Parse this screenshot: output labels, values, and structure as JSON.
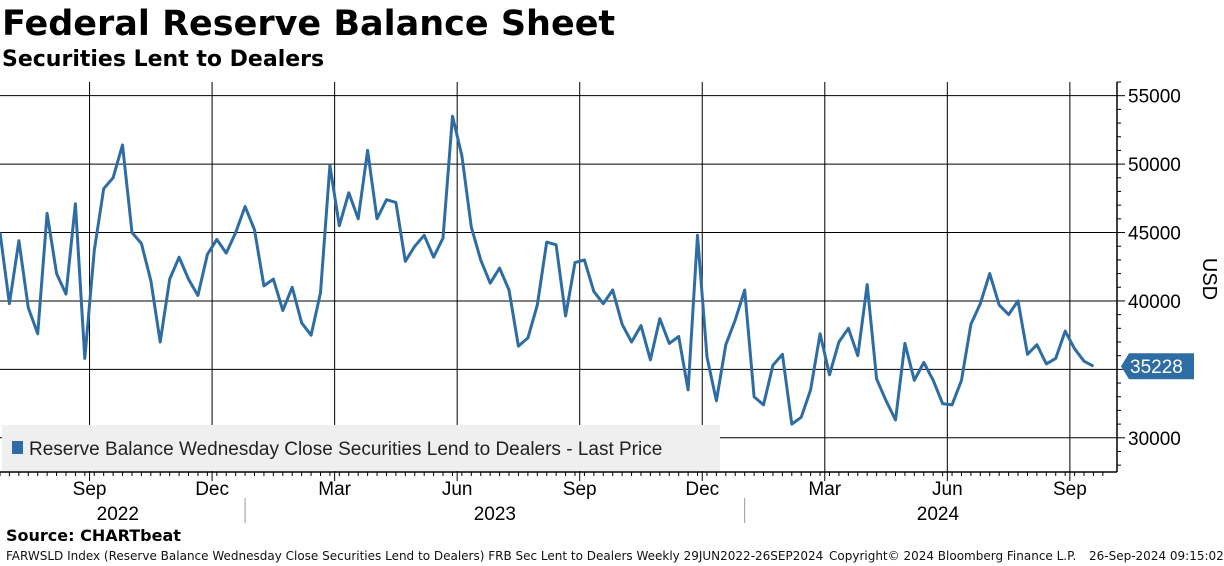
{
  "title": "Federal Reserve Balance Sheet",
  "subtitle": "Securities Lent to Dealers",
  "source": "Source: CHARTbeat",
  "footer": {
    "index_info": "FARWSLD Index (Reserve Balance Wednesday Close Securities Lend to Dealers) FRB Sec Lent to Dealers  Weekly 29JUN2022-26SEP2024",
    "copyright": "Copyright© 2024 Bloomberg Finance L.P.",
    "timestamp": "26-Sep-2024 09:15:02"
  },
  "chart_data": {
    "type": "line",
    "ylabel": "USD",
    "ylim": [
      27500,
      56000
    ],
    "yticks": [
      30000,
      35000,
      40000,
      45000,
      50000,
      55000
    ],
    "ytick_labels": [
      "30000",
      "35000",
      "40000",
      "45000",
      "50000",
      "55000"
    ],
    "x_range_weeks": [
      0,
      118.5
    ],
    "month_ticks": [
      {
        "label": "Sep",
        "week": 9.5
      },
      {
        "label": "Dec",
        "week": 22.5
      },
      {
        "label": "Mar",
        "week": 35.5
      },
      {
        "label": "Jun",
        "week": 48.5
      },
      {
        "label": "Sep",
        "week": 61.5
      },
      {
        "label": "Dec",
        "week": 74.5
      },
      {
        "label": "Mar",
        "week": 87.5
      },
      {
        "label": "Jun",
        "week": 100.5
      },
      {
        "label": "Sep",
        "week": 113.5
      }
    ],
    "year_labels": [
      {
        "label": "2022",
        "center_week": 12.5
      },
      {
        "label": "2023",
        "center_week": 52.5
      },
      {
        "label": "2024",
        "center_week": 99.5
      }
    ],
    "year_separators": [
      26,
      79
    ],
    "legend": "Reserve Balance Wednesday Close Securities Lend to Dealers - Last Price",
    "legend_position": "bottom-left",
    "series_color": "#2e6da4",
    "last_value": 35228,
    "last_value_label": "35228",
    "series": [
      {
        "name": "Reserve Balance Wednesday Close Securities Lend to Dealers - Last Price",
        "values": [
          45000,
          39800,
          44400,
          39500,
          37600,
          46400,
          42000,
          40500,
          47100,
          35800,
          43700,
          48200,
          49000,
          51400,
          45000,
          44200,
          41500,
          37000,
          41600,
          43200,
          41600,
          40400,
          43400,
          44500,
          43500,
          45000,
          46900,
          45200,
          41100,
          41600,
          39300,
          41000,
          38400,
          37500,
          40600,
          49900,
          45500,
          47900,
          46000,
          51000,
          46000,
          47400,
          47200,
          42900,
          44000,
          44800,
          43200,
          44600,
          53500,
          50600,
          45400,
          43000,
          41300,
          42400,
          40800,
          36700,
          37300,
          39700,
          44300,
          44100,
          38900,
          42800,
          43000,
          40700,
          39800,
          40800,
          38300,
          37000,
          38200,
          35700,
          38700,
          36900,
          37400,
          33500,
          44800,
          35900,
          32700,
          36800,
          38600,
          40800,
          33000,
          32400,
          35300,
          36100,
          31000,
          31500,
          33500,
          37600,
          34600,
          37000,
          38000,
          36000,
          41200,
          34300,
          32700,
          31300,
          36900,
          34200,
          35500,
          34200,
          32500,
          32400,
          34200,
          38300,
          39800,
          42000,
          39700,
          39000,
          40000,
          36100,
          36800,
          35400,
          35800,
          37800,
          36500,
          35600,
          35228
        ]
      }
    ]
  }
}
